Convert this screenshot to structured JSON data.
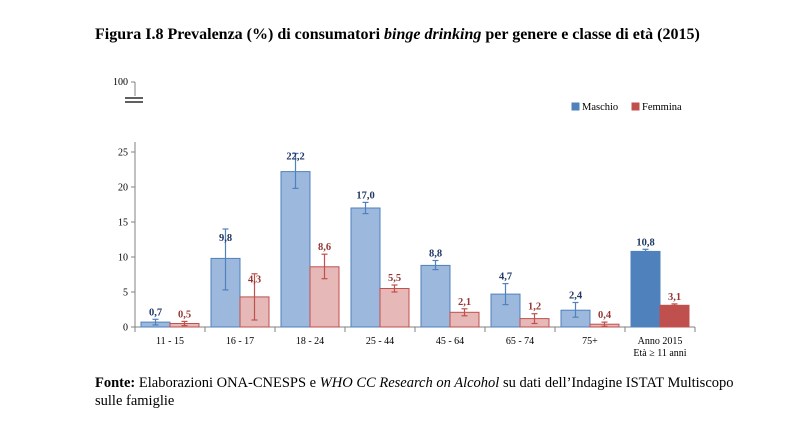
{
  "title": {
    "prefix": "Figura I.8 Prevalenza (%) di consumatori ",
    "italic": "binge drinking",
    "suffix": " per genere e classe di età (2015)"
  },
  "source": {
    "label": "Fonte:",
    "text1": " Elaborazioni ONA-CNESPS e ",
    "italic": "WHO CC Research on Alcohol",
    "text2": " su dati dell’Indagine ISTAT Multiscopo sulle famiglie"
  },
  "chart_data": {
    "type": "bar",
    "title": "",
    "xlabel": "",
    "ylabel": "",
    "ylim": [
      0,
      25
    ],
    "yticks": [
      0,
      5,
      10,
      15,
      20,
      25
    ],
    "axis_break_top_label": "100",
    "categories": [
      "11 - 15",
      "16 - 17",
      "18 - 24",
      "25 - 44",
      "45 - 64",
      "65 - 74",
      "75+",
      "Anno 2015 Età ≥ 11 anni"
    ],
    "category_lines": [
      [
        "11 - 15"
      ],
      [
        "16 - 17"
      ],
      [
        "18 - 24"
      ],
      [
        "25 - 44"
      ],
      [
        "45 - 64"
      ],
      [
        "65 - 74"
      ],
      [
        "75+"
      ],
      [
        "Anno 2015",
        "Età ≥ 11 anni"
      ]
    ],
    "series": [
      {
        "name": "Maschio",
        "values": [
          0.7,
          9.8,
          22.2,
          17.0,
          8.8,
          4.7,
          2.4,
          10.8
        ],
        "labels": [
          "0,7",
          "9,8",
          "22,2",
          "17,0",
          "8,8",
          "4,7",
          "2,4",
          "10,8"
        ],
        "error_low": [
          0.3,
          5.3,
          19.8,
          16.2,
          8.2,
          3.2,
          1.4,
          10.5
        ],
        "error_high": [
          1.1,
          14.0,
          24.8,
          17.8,
          9.5,
          6.2,
          3.5,
          11.1
        ],
        "fill": "#9db8dd",
        "stroke": "#4f81bd",
        "total_fill": "#4f81bd",
        "label_color": "#1f3864"
      },
      {
        "name": "Femmina",
        "values": [
          0.5,
          4.3,
          8.6,
          5.5,
          2.1,
          1.2,
          0.4,
          3.1
        ],
        "labels": [
          "0,5",
          "4,3",
          "8,6",
          "5,5",
          "2,1",
          "1,2",
          "0,4",
          "3,1"
        ],
        "error_low": [
          0.2,
          1.0,
          6.9,
          5.0,
          1.6,
          0.5,
          0.1,
          2.9
        ],
        "error_high": [
          0.8,
          7.6,
          10.4,
          6.0,
          2.6,
          1.9,
          0.7,
          3.3
        ],
        "fill": "#e6b8b7",
        "stroke": "#c0504d",
        "total_fill": "#c0504d",
        "label_color": "#953735"
      }
    ],
    "legend_position": "top-right",
    "grid": false
  }
}
